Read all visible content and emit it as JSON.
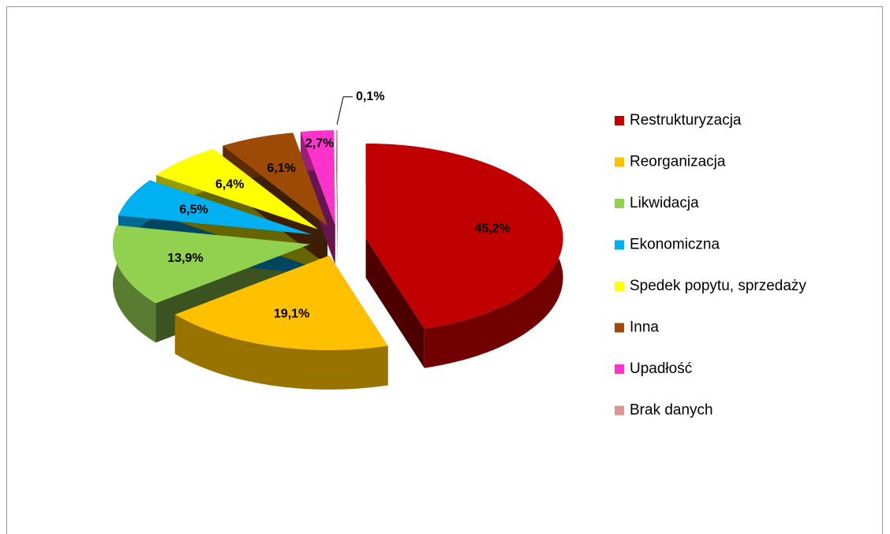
{
  "chart_data": {
    "type": "pie",
    "categories": [
      "Restrukturyzacja",
      "Reorganizacja",
      "Likwidacja",
      "Ekonomiczna",
      "Spedek popytu, sprzedaży",
      "Inna",
      "Upadłość",
      "Brak danych"
    ],
    "values": [
      45.2,
      19.1,
      13.9,
      6.5,
      6.4,
      6.1,
      2.7,
      0.1
    ],
    "value_labels": [
      "45,2%",
      "19,1%",
      "13,9%",
      "6,5%",
      "6,4%",
      "6,1%",
      "2,7%",
      "0,1%"
    ],
    "colors": [
      "#c00000",
      "#ffc000",
      "#92d050",
      "#00b0f0",
      "#ffff00",
      "#9c4a06",
      "#ff33cc",
      "#d99694"
    ],
    "legend": "right"
  }
}
